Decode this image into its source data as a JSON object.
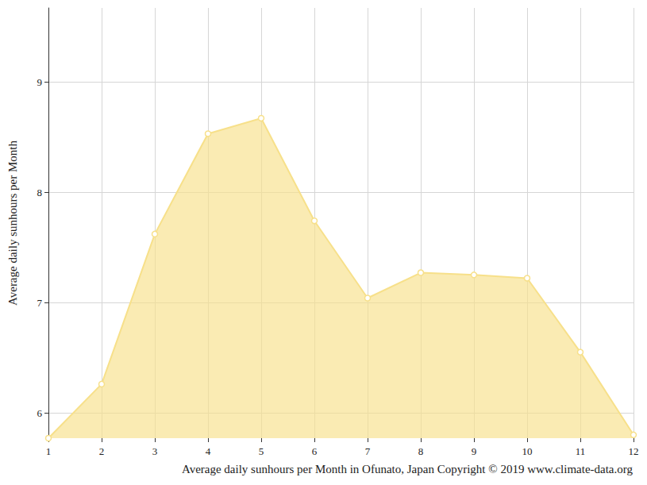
{
  "chart_data": {
    "type": "area",
    "title": "Average daily sunhours per Month in Ofunato, Japan Copyright © 2019 www.climate-data.org",
    "y_label": "Average daily sunhours per Month",
    "categories": [
      "1",
      "2",
      "3",
      "4",
      "5",
      "6",
      "7",
      "8",
      "9",
      "10",
      "11",
      "12"
    ],
    "values": [
      5.77,
      6.26,
      7.62,
      8.53,
      8.67,
      7.74,
      7.04,
      7.27,
      7.25,
      7.22,
      6.55,
      5.8
    ],
    "color": "#f7e08a",
    "marker": "circle",
    "ylim": [
      5.77,
      9.67
    ],
    "yticks": [
      6,
      7,
      8,
      9
    ],
    "grid": true
  }
}
